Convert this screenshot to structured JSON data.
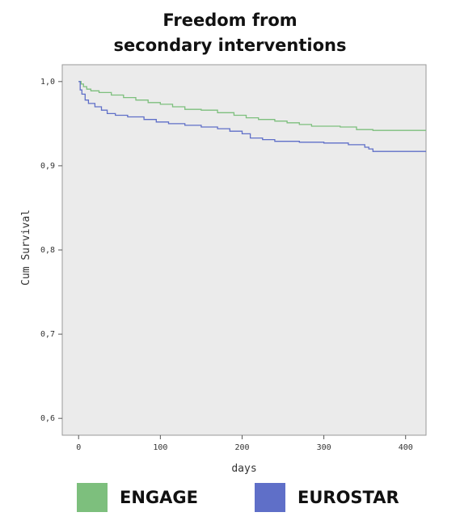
{
  "chart_data": {
    "type": "line",
    "title_lines": [
      "Freedom from",
      "secondary interventions"
    ],
    "xlabel": "days",
    "ylabel": "Cum Survival",
    "xlim": [
      -20,
      425
    ],
    "ylim": [
      0.58,
      1.02
    ],
    "xticks": [
      {
        "value": 0,
        "label": "0"
      },
      {
        "value": 100,
        "label": "100"
      },
      {
        "value": 200,
        "label": "200"
      },
      {
        "value": 300,
        "label": "300"
      },
      {
        "value": 400,
        "label": "400"
      }
    ],
    "yticks": [
      {
        "value": 1.0,
        "label": "1,0"
      },
      {
        "value": 0.9,
        "label": "0,9"
      },
      {
        "value": 0.8,
        "label": "0,8"
      },
      {
        "value": 0.7,
        "label": "0,7"
      },
      {
        "value": 0.6,
        "label": "0,6"
      }
    ],
    "grid": false,
    "background_color": "#ebebeb",
    "series": [
      {
        "name": "ENGAGE",
        "color": "#7dbf7d",
        "step": true,
        "points": [
          [
            0,
            1.0
          ],
          [
            3,
            0.997
          ],
          [
            6,
            0.994
          ],
          [
            10,
            0.991
          ],
          [
            15,
            0.989
          ],
          [
            25,
            0.987
          ],
          [
            40,
            0.984
          ],
          [
            55,
            0.981
          ],
          [
            70,
            0.978
          ],
          [
            85,
            0.975
          ],
          [
            100,
            0.973
          ],
          [
            115,
            0.97
          ],
          [
            130,
            0.967
          ],
          [
            150,
            0.966
          ],
          [
            170,
            0.963
          ],
          [
            190,
            0.96
          ],
          [
            205,
            0.957
          ],
          [
            220,
            0.955
          ],
          [
            240,
            0.953
          ],
          [
            255,
            0.951
          ],
          [
            270,
            0.949
          ],
          [
            285,
            0.947
          ],
          [
            320,
            0.946
          ],
          [
            340,
            0.943
          ],
          [
            360,
            0.942
          ],
          [
            425,
            0.942
          ]
        ]
      },
      {
        "name": "EUROSTAR",
        "color": "#5f6fc8",
        "step": true,
        "points": [
          [
            0,
            1.0
          ],
          [
            2,
            0.99
          ],
          [
            4,
            0.985
          ],
          [
            8,
            0.978
          ],
          [
            12,
            0.974
          ],
          [
            20,
            0.97
          ],
          [
            28,
            0.966
          ],
          [
            35,
            0.962
          ],
          [
            45,
            0.96
          ],
          [
            60,
            0.958
          ],
          [
            80,
            0.955
          ],
          [
            95,
            0.952
          ],
          [
            110,
            0.95
          ],
          [
            130,
            0.948
          ],
          [
            150,
            0.946
          ],
          [
            170,
            0.944
          ],
          [
            185,
            0.941
          ],
          [
            200,
            0.938
          ],
          [
            210,
            0.933
          ],
          [
            225,
            0.931
          ],
          [
            240,
            0.929
          ],
          [
            270,
            0.928
          ],
          [
            300,
            0.927
          ],
          [
            330,
            0.925
          ],
          [
            350,
            0.922
          ],
          [
            355,
            0.92
          ],
          [
            360,
            0.917
          ],
          [
            425,
            0.917
          ]
        ]
      }
    ],
    "legend": {
      "placement": "bottom",
      "entries": [
        {
          "label": "ENGAGE",
          "color": "#7dbf7d"
        },
        {
          "label": "EUROSTAR",
          "color": "#5f6fc8"
        }
      ]
    }
  }
}
